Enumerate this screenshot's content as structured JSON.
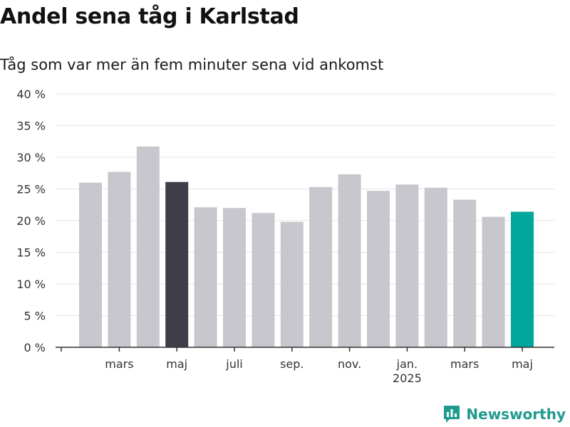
{
  "title": "Andel sena tåg i Karlstad",
  "subtitle": "Tåg som var mer än fem minuter sena vid ankomst",
  "brand": {
    "name": "Newsworthy",
    "icon": "bar-chart-bubble-icon"
  },
  "colors": {
    "bar": "#c8c7cd",
    "highlight_dark": "#3f3d49",
    "highlight_accent": "#00a79a",
    "grid": "#e4e4e4",
    "axis": "#333333",
    "brand": "#1f9a8e"
  },
  "chart_data": {
    "type": "bar",
    "title": "Andel sena tåg i Karlstad",
    "subtitle": "Tåg som var mer än fem minuter sena vid ankomst",
    "xlabel": "",
    "ylabel": "",
    "ylim": [
      0,
      40
    ],
    "yticks": [
      0,
      5,
      10,
      15,
      20,
      25,
      30,
      35,
      40
    ],
    "ytick_labels": [
      "0 %",
      "5 %",
      "10 %",
      "15 %",
      "20 %",
      "25 %",
      "30 %",
      "35 %",
      "40 %"
    ],
    "grid": true,
    "legend": "none",
    "categories": [
      "2024-02",
      "2024-03",
      "2024-04",
      "2024-05",
      "2024-06",
      "2024-07",
      "2024-08",
      "2024-09",
      "2024-10",
      "2024-11",
      "2024-12",
      "2025-01",
      "2025-02",
      "2025-03",
      "2025-04",
      "2025-05"
    ],
    "values": [
      26.0,
      27.7,
      31.7,
      26.1,
      22.1,
      22.0,
      21.2,
      19.8,
      25.3,
      27.3,
      24.7,
      25.7,
      25.2,
      23.3,
      20.6,
      21.4
    ],
    "highlight": {
      "2024-05": "dark",
      "2025-05": "accent"
    },
    "xtick_labels": [
      {
        "category": "2024-03",
        "label": "mars"
      },
      {
        "category": "2024-05",
        "label": "maj"
      },
      {
        "category": "2024-07",
        "label": "juli"
      },
      {
        "category": "2024-09",
        "label": "sep."
      },
      {
        "category": "2024-11",
        "label": "nov."
      },
      {
        "category": "2025-01",
        "label": "jan.",
        "sublabel": "2025"
      },
      {
        "category": "2025-03",
        "label": "mars"
      },
      {
        "category": "2025-05",
        "label": "maj"
      }
    ]
  }
}
